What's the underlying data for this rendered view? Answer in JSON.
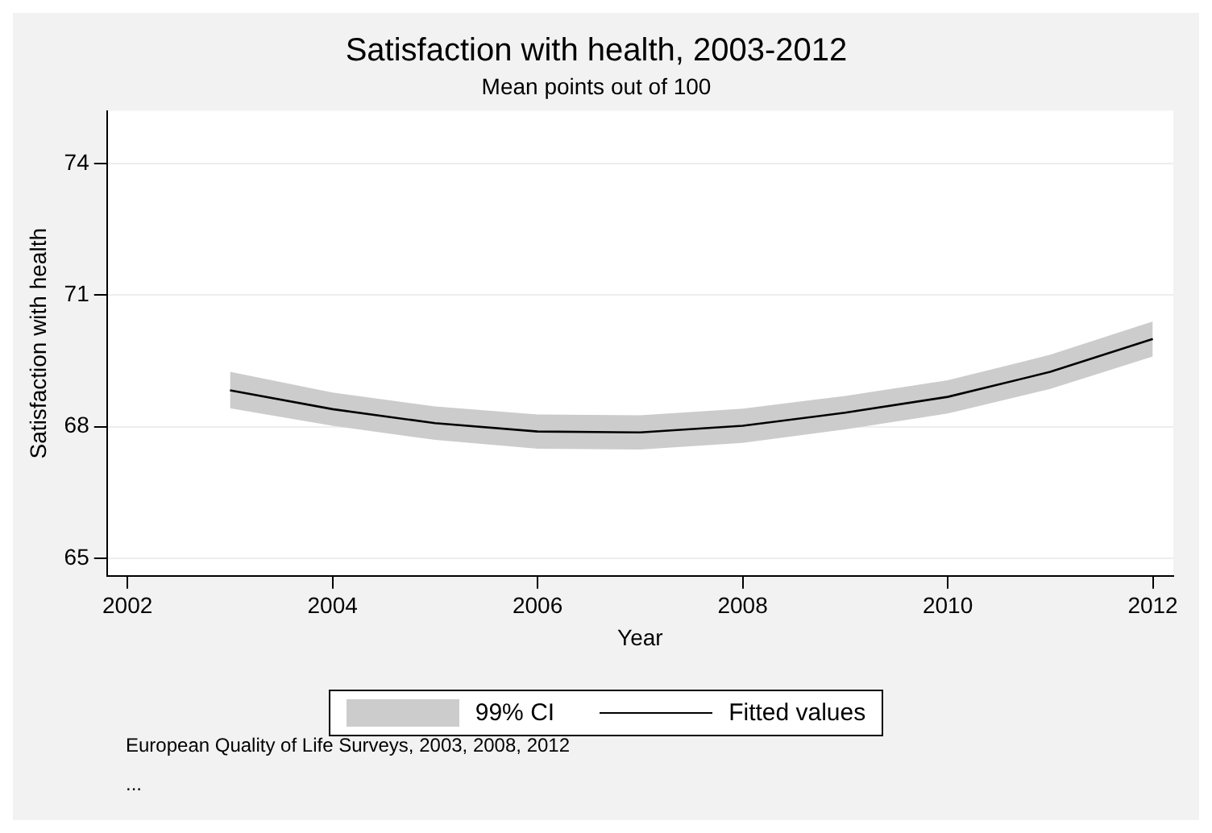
{
  "chart_data": {
    "type": "line",
    "title": "Satisfaction with health, 2003-2012",
    "subtitle": "Mean points out of 100",
    "xlabel": "Year",
    "ylabel": "Satisfaction with health",
    "legend_title": "99% CI",
    "x": [
      2003,
      2004,
      2005,
      2006,
      2007,
      2008,
      2009,
      2010,
      2011,
      2012
    ],
    "series": [
      {
        "name": "Fitted values",
        "color": "#000000",
        "values": [
          68.83,
          68.4,
          68.08,
          67.89,
          67.87,
          68.02,
          68.32,
          68.68,
          69.25,
          70.0
        ],
        "lower": [
          68.42,
          68.02,
          67.7,
          67.5,
          67.48,
          67.63,
          67.94,
          68.3,
          68.86,
          69.6
        ],
        "upper": [
          69.25,
          68.78,
          68.46,
          68.28,
          68.26,
          68.41,
          68.7,
          69.06,
          69.64,
          70.4
        ]
      }
    ],
    "xlim": [
      2001.8,
      2012.2
    ],
    "xticks": [
      2002,
      2004,
      2006,
      2008,
      2010,
      2012
    ],
    "ylim": [
      64.6,
      75.2
    ],
    "yticks": [
      65,
      68,
      71,
      74
    ],
    "grid": "y",
    "legend": "bottom",
    "marker": "none",
    "line_style": "solid",
    "annotations": [
      "European Quality of Life Surveys, 2003, 2008, 2012",
      "..."
    ]
  }
}
